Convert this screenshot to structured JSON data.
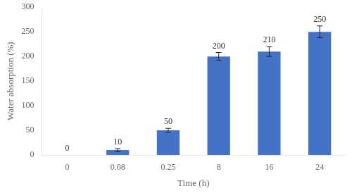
{
  "chart_data": {
    "type": "bar",
    "xlabel": "Time (h)",
    "ylabel": "Water absorption (%)",
    "categories": [
      "0",
      "0.08",
      "0.25",
      "8",
      "16",
      "24"
    ],
    "values": [
      0,
      10,
      50,
      200,
      210,
      250
    ],
    "errors": [
      0,
      3,
      4,
      8,
      10,
      12
    ],
    "color": "#4472C4",
    "ylim": [
      0,
      300
    ],
    "yticks": [
      0,
      50,
      100,
      150,
      200,
      250,
      300
    ],
    "grid": false,
    "data_labels": true
  }
}
